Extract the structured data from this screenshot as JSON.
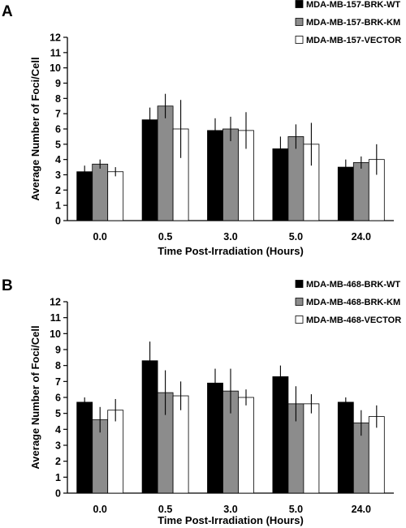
{
  "chart_data": [
    {
      "panel": "A",
      "type": "bar",
      "categories": [
        "0.0",
        "0.5",
        "3.0",
        "5.0",
        "24.0"
      ],
      "xlabel": "Time Post-Irradiation (Hours)",
      "ylabel": "Average Number of Foci/Cell",
      "ylim": [
        0,
        12
      ],
      "yticks": [
        "0",
        "1",
        "2",
        "3",
        "4",
        "5",
        "6",
        "7",
        "8",
        "9",
        "10",
        "11",
        "12"
      ],
      "grid": false,
      "legend_position": "top-right",
      "series": [
        {
          "name": "MDA-MB-157-BRK-WT",
          "color": "#000000",
          "values": [
            3.2,
            6.6,
            5.9,
            4.7,
            3.5
          ],
          "errors": [
            0.4,
            0.8,
            0.8,
            0.8,
            0.5
          ]
        },
        {
          "name": "MDA-MB-157-BRK-KM",
          "color": "#8c8c8c",
          "values": [
            3.7,
            7.5,
            6.0,
            5.5,
            3.8
          ],
          "errors": [
            0.3,
            0.8,
            0.8,
            0.8,
            0.4
          ]
        },
        {
          "name": "MDA-MB-157-VECTOR",
          "color": "#ffffff",
          "values": [
            3.2,
            6.0,
            5.9,
            5.0,
            4.0
          ],
          "errors": [
            0.3,
            1.9,
            1.2,
            1.4,
            1.0
          ]
        }
      ]
    },
    {
      "panel": "B",
      "type": "bar",
      "categories": [
        "0.0",
        "0.5",
        "3.0",
        "5.0",
        "24.0"
      ],
      "xlabel": "Time Post-Irradiation (Hours)",
      "ylabel": "Average Number of Foci/Cell",
      "ylim": [
        0,
        12
      ],
      "yticks": [
        "0",
        "1",
        "2",
        "3",
        "4",
        "5",
        "6",
        "7",
        "8",
        "9",
        "10",
        "11",
        "12"
      ],
      "grid": false,
      "legend_position": "top-right",
      "series": [
        {
          "name": "MDA-MB-468-BRK-WT",
          "color": "#000000",
          "values": [
            5.7,
            8.3,
            6.9,
            7.3,
            5.7
          ],
          "errors": [
            0.3,
            1.2,
            0.9,
            0.7,
            0.3
          ]
        },
        {
          "name": "MDA-MB-468-BRK-KM",
          "color": "#8c8c8c",
          "values": [
            4.6,
            6.3,
            6.4,
            5.6,
            4.4
          ],
          "errors": [
            0.8,
            1.4,
            1.4,
            1.1,
            0.8
          ]
        },
        {
          "name": "MDA-MB-468-VECTOR",
          "color": "#ffffff",
          "values": [
            5.2,
            6.1,
            6.0,
            5.6,
            4.8
          ],
          "errors": [
            0.7,
            0.9,
            0.5,
            0.6,
            0.7
          ]
        }
      ]
    }
  ]
}
